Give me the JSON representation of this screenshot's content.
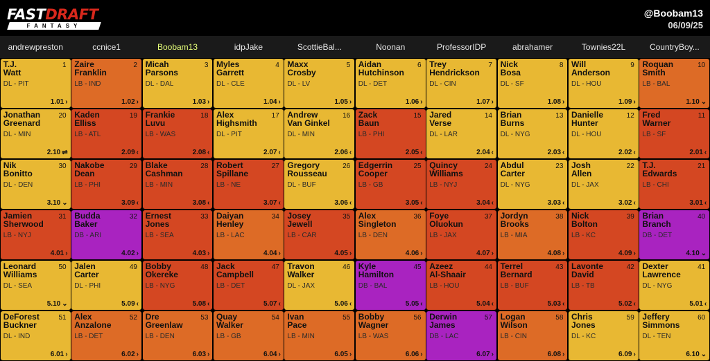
{
  "header": {
    "logo_main_1": "FAST",
    "logo_main_2": "DRAFT",
    "logo_sub": "FANTASY",
    "username": "@Boobam13",
    "date": "06/09/25"
  },
  "colors": {
    "DL": "#e8b833",
    "LB": "#d44722",
    "DB": "#a923c0",
    "LB_alt": "#dd6b26"
  },
  "teams": [
    "andrewpreston",
    "ccnice1",
    "Boobam13",
    "idpJake",
    "ScottieBal...",
    "Noonan",
    "ProfessorIDP",
    "abrahamer",
    "Townies22L",
    "CountryBoy..."
  ],
  "active_team": "Boobam13",
  "rows": [
    [
      {
        "first": "T.J.",
        "last": "Watt",
        "pos": "DL - PIT",
        "pick": "1",
        "slot": "1.01",
        "arrow": "›",
        "kind": "DL"
      },
      {
        "first": "Zaire",
        "last": "Franklin",
        "pos": "LB - IND",
        "pick": "2",
        "slot": "1.02",
        "arrow": "›",
        "kind": "LB"
      },
      {
        "first": "Micah",
        "last": "Parsons",
        "pos": "DL - DAL",
        "pick": "3",
        "slot": "1.03",
        "arrow": "›",
        "kind": "DL"
      },
      {
        "first": "Myles",
        "last": "Garrett",
        "pos": "DL - CLE",
        "pick": "4",
        "slot": "1.04",
        "arrow": "›",
        "kind": "DL"
      },
      {
        "first": "Maxx",
        "last": "Crosby",
        "pos": "DL - LV",
        "pick": "5",
        "slot": "1.05",
        "arrow": "›",
        "kind": "DL"
      },
      {
        "first": "Aidan",
        "last": "Hutchinson",
        "pos": "DL - DET",
        "pick": "6",
        "slot": "1.06",
        "arrow": "›",
        "kind": "DL"
      },
      {
        "first": "Trey",
        "last": "Hendrickson",
        "pos": "DL - CIN",
        "pick": "7",
        "slot": "1.07",
        "arrow": "›",
        "kind": "DL"
      },
      {
        "first": "Nick",
        "last": "Bosa",
        "pos": "DL - SF",
        "pick": "8",
        "slot": "1.08",
        "arrow": "›",
        "kind": "DL"
      },
      {
        "first": "Will",
        "last": "Anderson",
        "pos": "DL - HOU",
        "pick": "9",
        "slot": "1.09",
        "arrow": "›",
        "kind": "DL"
      },
      {
        "first": "Roquan",
        "last": "Smith",
        "pos": "LB - BAL",
        "pick": "10",
        "slot": "1.10",
        "arrow": "⌄",
        "kind": "LB"
      }
    ],
    [
      {
        "first": "Jonathan",
        "last": "Greenard",
        "pos": "DL - MIN",
        "pick": "20",
        "slot": "2.10",
        "arrow": "⇌",
        "kind": "DL"
      },
      {
        "first": "Kaden",
        "last": "Elliss",
        "pos": "LB - ATL",
        "pick": "19",
        "slot": "2.09",
        "arrow": "‹",
        "kind": "LB"
      },
      {
        "first": "Frankie",
        "last": "Luvu",
        "pos": "LB - WAS",
        "pick": "18",
        "slot": "2.08",
        "arrow": "‹",
        "kind": "LB"
      },
      {
        "first": "Alex",
        "last": "Highsmith",
        "pos": "DL - PIT",
        "pick": "17",
        "slot": "2.07",
        "arrow": "‹",
        "kind": "DL"
      },
      {
        "first": "Andrew",
        "last": "Van Ginkel",
        "pos": "DL - MIN",
        "pick": "16",
        "slot": "2.06",
        "arrow": "‹",
        "kind": "DL"
      },
      {
        "first": "Zack",
        "last": "Baun",
        "pos": "LB - PHI",
        "pick": "15",
        "slot": "2.05",
        "arrow": "‹",
        "kind": "LB"
      },
      {
        "first": "Jared",
        "last": "Verse",
        "pos": "DL - LAR",
        "pick": "14",
        "slot": "2.04",
        "arrow": "‹",
        "kind": "DL"
      },
      {
        "first": "Brian",
        "last": "Burns",
        "pos": "DL - NYG",
        "pick": "13",
        "slot": "2.03",
        "arrow": "‹",
        "kind": "DL"
      },
      {
        "first": "Danielle",
        "last": "Hunter",
        "pos": "DL - HOU",
        "pick": "12",
        "slot": "2.02",
        "arrow": "‹",
        "kind": "DL"
      },
      {
        "first": "Fred",
        "last": "Warner",
        "pos": "LB - SF",
        "pick": "11",
        "slot": "2.01",
        "arrow": "‹",
        "kind": "LB"
      }
    ],
    [
      {
        "first": "Nik",
        "last": "Bonitto",
        "pos": "DL - DEN",
        "pick": "30",
        "slot": "3.10",
        "arrow": "⌄",
        "kind": "DL"
      },
      {
        "first": "Nakobe",
        "last": "Dean",
        "pos": "LB - PHI",
        "pick": "29",
        "slot": "3.09",
        "arrow": "‹",
        "kind": "LB"
      },
      {
        "first": "Blake",
        "last": "Cashman",
        "pos": "LB - MIN",
        "pick": "28",
        "slot": "3.08",
        "arrow": "‹",
        "kind": "LB"
      },
      {
        "first": "Robert",
        "last": "Spillane",
        "pos": "LB - NE",
        "pick": "27",
        "slot": "3.07",
        "arrow": "‹",
        "kind": "LB"
      },
      {
        "first": "Gregory",
        "last": "Rousseau",
        "pos": "DL - BUF",
        "pick": "26",
        "slot": "3.06",
        "arrow": "‹",
        "kind": "DL"
      },
      {
        "first": "Edgerrin",
        "last": "Cooper",
        "pos": "LB - GB",
        "pick": "25",
        "slot": "3.05",
        "arrow": "‹",
        "kind": "LB"
      },
      {
        "first": "Quincy",
        "last": "Williams",
        "pos": "LB - NYJ",
        "pick": "24",
        "slot": "3.04",
        "arrow": "‹",
        "kind": "LB"
      },
      {
        "first": "Abdul",
        "last": "Carter",
        "pos": "DL - NYG",
        "pick": "23",
        "slot": "3.03",
        "arrow": "‹",
        "kind": "DL"
      },
      {
        "first": "Josh",
        "last": "Allen",
        "pos": "DL - JAX",
        "pick": "22",
        "slot": "3.02",
        "arrow": "‹",
        "kind": "DL"
      },
      {
        "first": "T.J.",
        "last": "Edwards",
        "pos": "LB - CHI",
        "pick": "21",
        "slot": "3.01",
        "arrow": "‹",
        "kind": "LB"
      }
    ],
    [
      {
        "first": "Jamien",
        "last": "Sherwood",
        "pos": "LB - NYJ",
        "pick": "31",
        "slot": "4.01",
        "arrow": "›",
        "kind": "LB"
      },
      {
        "first": "Budda",
        "last": "Baker",
        "pos": "DB - ARI",
        "pick": "32",
        "slot": "4.02",
        "arrow": "›",
        "kind": "DB"
      },
      {
        "first": "Ernest",
        "last": "Jones",
        "pos": "LB - SEA",
        "pick": "33",
        "slot": "4.03",
        "arrow": "›",
        "kind": "LB"
      },
      {
        "first": "Daiyan",
        "last": "Henley",
        "pos": "LB - LAC",
        "pick": "34",
        "slot": "4.04",
        "arrow": "›",
        "kind": "LB"
      },
      {
        "first": "Josey",
        "last": "Jewell",
        "pos": "LB - CAR",
        "pick": "35",
        "slot": "4.05",
        "arrow": "›",
        "kind": "LB"
      },
      {
        "first": "Alex",
        "last": "Singleton",
        "pos": "LB - DEN",
        "pick": "36",
        "slot": "4.06",
        "arrow": "›",
        "kind": "LB"
      },
      {
        "first": "Foye",
        "last": "Oluokun",
        "pos": "LB - JAX",
        "pick": "37",
        "slot": "4.07",
        "arrow": "›",
        "kind": "LB"
      },
      {
        "first": "Jordyn",
        "last": "Brooks",
        "pos": "LB - MIA",
        "pick": "38",
        "slot": "4.08",
        "arrow": "›",
        "kind": "LB"
      },
      {
        "first": "Nick",
        "last": "Bolton",
        "pos": "LB - KC",
        "pick": "39",
        "slot": "4.09",
        "arrow": "›",
        "kind": "LB"
      },
      {
        "first": "Brian",
        "last": "Branch",
        "pos": "DB - DET",
        "pick": "40",
        "slot": "4.10",
        "arrow": "⌄",
        "kind": "DB"
      }
    ],
    [
      {
        "first": "Leonard",
        "last": "Williams",
        "pos": "DL - SEA",
        "pick": "50",
        "slot": "5.10",
        "arrow": "⌄",
        "kind": "DL"
      },
      {
        "first": "Jalen",
        "last": "Carter",
        "pos": "DL - PHI",
        "pick": "49",
        "slot": "5.09",
        "arrow": "‹",
        "kind": "DL"
      },
      {
        "first": "Bobby",
        "last": "Okereke",
        "pos": "LB - NYG",
        "pick": "48",
        "slot": "5.08",
        "arrow": "‹",
        "kind": "LB"
      },
      {
        "first": "Jack",
        "last": "Campbell",
        "pos": "LB - DET",
        "pick": "47",
        "slot": "5.07",
        "arrow": "‹",
        "kind": "LB"
      },
      {
        "first": "Travon",
        "last": "Walker",
        "pos": "DL - JAX",
        "pick": "46",
        "slot": "5.06",
        "arrow": "‹",
        "kind": "DL"
      },
      {
        "first": "Kyle",
        "last": "Hamilton",
        "pos": "DB - BAL",
        "pick": "45",
        "slot": "5.05",
        "arrow": "‹",
        "kind": "DB"
      },
      {
        "first": "Azeez",
        "last": "Al-Shaair",
        "pos": "LB - HOU",
        "pick": "44",
        "slot": "5.04",
        "arrow": "‹",
        "kind": "LB"
      },
      {
        "first": "Terrel",
        "last": "Bernard",
        "pos": "LB - BUF",
        "pick": "43",
        "slot": "5.03",
        "arrow": "‹",
        "kind": "LB"
      },
      {
        "first": "Lavonte",
        "last": "David",
        "pos": "LB - TB",
        "pick": "42",
        "slot": "5.02",
        "arrow": "‹",
        "kind": "LB"
      },
      {
        "first": "Dexter",
        "last": "Lawrence",
        "pos": "DL - NYG",
        "pick": "41",
        "slot": "5.01",
        "arrow": "‹",
        "kind": "DL"
      }
    ],
    [
      {
        "first": "DeForest",
        "last": "Buckner",
        "pos": "DL - IND",
        "pick": "51",
        "slot": "6.01",
        "arrow": "›",
        "kind": "DL"
      },
      {
        "first": "Alex",
        "last": "Anzalone",
        "pos": "LB - DET",
        "pick": "52",
        "slot": "6.02",
        "arrow": "›",
        "kind": "LB"
      },
      {
        "first": "Dre",
        "last": "Greenlaw",
        "pos": "LB - DEN",
        "pick": "53",
        "slot": "6.03",
        "arrow": "›",
        "kind": "LB"
      },
      {
        "first": "Quay",
        "last": "Walker",
        "pos": "LB - GB",
        "pick": "54",
        "slot": "6.04",
        "arrow": "›",
        "kind": "LB"
      },
      {
        "first": "Ivan",
        "last": "Pace",
        "pos": "LB - MIN",
        "pick": "55",
        "slot": "6.05",
        "arrow": "›",
        "kind": "LB"
      },
      {
        "first": "Bobby",
        "last": "Wagner",
        "pos": "LB - WAS",
        "pick": "56",
        "slot": "6.06",
        "arrow": "›",
        "kind": "LB"
      },
      {
        "first": "Derwin",
        "last": "James",
        "pos": "DB - LAC",
        "pick": "57",
        "slot": "6.07",
        "arrow": "›",
        "kind": "DB"
      },
      {
        "first": "Logan",
        "last": "Wilson",
        "pos": "LB - CIN",
        "pick": "58",
        "slot": "6.08",
        "arrow": "›",
        "kind": "LB"
      },
      {
        "first": "Chris",
        "last": "Jones",
        "pos": "DL - KC",
        "pick": "59",
        "slot": "6.09",
        "arrow": "›",
        "kind": "DL"
      },
      {
        "first": "Jeffery",
        "last": "Simmons",
        "pos": "DL - TEN",
        "pick": "60",
        "slot": "6.10",
        "arrow": "⌄",
        "kind": "DL"
      }
    ]
  ]
}
